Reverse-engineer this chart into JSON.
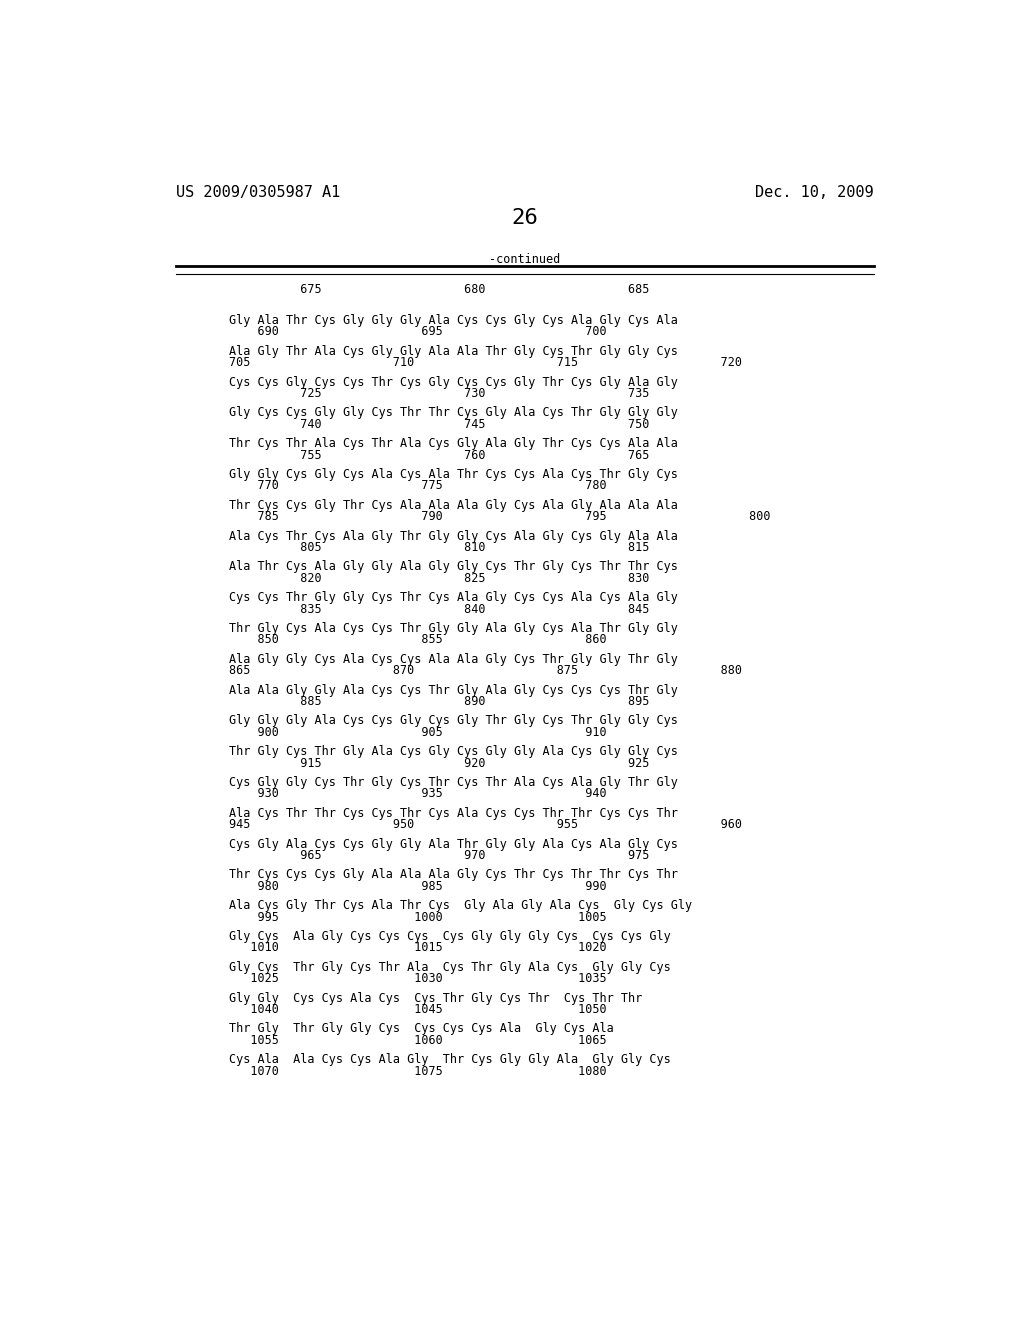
{
  "header_left": "US 2009/0305987 A1",
  "header_right": "Dec. 10, 2009",
  "page_number": "26",
  "continued_label": "-continued",
  "background_color": "#ffffff",
  "text_color": "#000000",
  "font_size_header": 11,
  "font_size_body": 8.5,
  "font_size_page": 16,
  "lines": [
    [
      "          675                    680                    685",
      ""
    ],
    [
      "Gly Ala Thr Cys Gly Gly Gly Ala Cys Cys Gly Cys Ala Gly Cys Ala",
      "    690                    695                    700"
    ],
    [
      "Ala Gly Thr Ala Cys Gly Gly Ala Ala Thr Gly Cys Thr Gly Gly Cys",
      "705                    710                    715                    720"
    ],
    [
      "Cys Cys Gly Cys Cys Thr Cys Gly Cys Cys Gly Thr Cys Gly Ala Gly",
      "          725                    730                    735"
    ],
    [
      "Gly Cys Cys Gly Gly Cys Thr Thr Cys Gly Ala Cys Thr Gly Gly Gly",
      "          740                    745                    750"
    ],
    [
      "Thr Cys Thr Ala Cys Thr Ala Cys Gly Ala Gly Thr Cys Cys Ala Ala",
      "          755                    760                    765"
    ],
    [
      "Gly Gly Cys Gly Cys Ala Cys Ala Thr Cys Cys Ala Cys Thr Gly Cys",
      "    770                    775                    780"
    ],
    [
      "Thr Cys Cys Gly Thr Cys Ala Ala Ala Gly Cys Ala Gly Ala Ala Ala",
      "    785                    790                    795                    800"
    ],
    [
      "Ala Cys Thr Cys Ala Gly Thr Gly Gly Cys Ala Gly Cys Gly Ala Ala",
      "          805                    810                    815"
    ],
    [
      "Ala Thr Cys Ala Gly Gly Ala Gly Gly Cys Thr Gly Cys Thr Thr Cys",
      "          820                    825                    830"
    ],
    [
      "Cys Cys Thr Gly Gly Cys Thr Cys Ala Gly Cys Cys Ala Cys Ala Gly",
      "          835                    840                    845"
    ],
    [
      "Thr Gly Cys Ala Cys Cys Thr Gly Gly Ala Gly Cys Ala Thr Gly Gly",
      "    850                    855                    860"
    ],
    [
      "Ala Gly Gly Cys Ala Cys Cys Ala Ala Gly Cys Thr Gly Gly Thr Gly",
      "865                    870                    875                    880"
    ],
    [
      "Ala Ala Gly Gly Ala Cys Cys Thr Gly Ala Gly Cys Cys Cys Thr Gly",
      "          885                    890                    895"
    ],
    [
      "Gly Gly Gly Ala Cys Cys Gly Cys Gly Thr Gly Cys Thr Gly Gly Cys",
      "    900                    905                    910"
    ],
    [
      "Thr Gly Cys Thr Gly Ala Cys Gly Cys Gly Gly Ala Cys Gly Gly Cys",
      "          915                    920                    925"
    ],
    [
      "Cys Gly Gly Cys Thr Gly Cys Thr Cys Thr Ala Cys Ala Gly Thr Gly",
      "    930                    935                    940"
    ],
    [
      "Ala Cys Thr Thr Cys Cys Thr Cys Ala Cys Cys Thr Thr Cys Cys Thr",
      "945                    950                    955                    960"
    ],
    [
      "Cys Gly Ala Cys Cys Gly Gly Ala Thr Gly Gly Ala Cys Ala Gly Cys",
      "          965                    970                    975"
    ],
    [
      "Thr Cys Cys Cys Gly Ala Ala Ala Gly Cys Thr Cys Thr Thr Cys Thr",
      "    980                    985                    990"
    ],
    [
      "Ala Cys Gly Thr Cys Ala Thr Cys  Gly Ala Gly Ala Cys  Gly Cys Gly",
      "    995                   1000                   1005"
    ],
    [
      "Gly Cys  Ala Gly Cys Cys Cys  Cys Gly Gly Gly Cys  Cys Cys Gly",
      "   1010                   1015                   1020"
    ],
    [
      "Gly Cys  Thr Gly Cys Thr Ala  Cys Thr Gly Ala Cys  Gly Gly Cys",
      "   1025                   1030                   1035"
    ],
    [
      "Gly Gly  Cys Cys Ala Cys  Cys Thr Gly Cys Thr  Cys Thr Thr",
      "   1040                   1045                   1050"
    ],
    [
      "Thr Gly  Thr Gly Gly Cys  Cys Cys Cys Ala  Gly Cys Ala",
      "   1055                   1060                   1065"
    ],
    [
      "Cys Ala  Ala Cys Cys Ala Gly  Thr Cys Gly Gly Ala  Gly Gly Cys",
      "   1070                   1075                   1080"
    ]
  ]
}
